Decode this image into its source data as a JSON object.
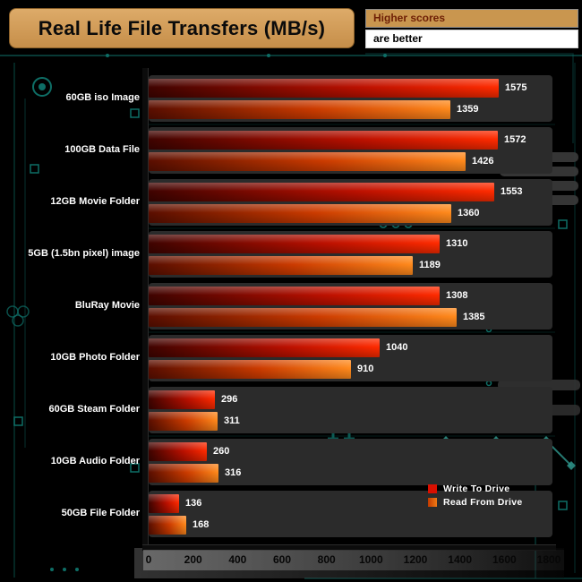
{
  "title": "Real Life File Transfers (MB/s)",
  "note": {
    "line1": "Higher scores",
    "line2": "are better"
  },
  "legend": {
    "write": "Write To  Drive",
    "read": "Read From  Drive",
    "write_color": "#d90f00",
    "read_color": "#ef7a14"
  },
  "colors": {
    "background": "#000000",
    "circuit_teal": "#0e6e66",
    "band_gray": "#2b2b2b",
    "title_box_tan": "#c9964f",
    "bar_write_bright": "#ff2b00",
    "bar_read_bright": "#ff8a1c",
    "label_white": "#ffffff"
  },
  "chart_data": {
    "type": "bar",
    "orientation": "horizontal",
    "title": "Real Life File Transfers (MB/s)",
    "categories": [
      "60GB iso Image",
      "100GB Data File",
      "12GB Movie Folder",
      "5GB (1.5bn pixel) image",
      "BluRay Movie",
      "10GB Photo Folder",
      "60GB Steam Folder",
      "10GB Audio Folder",
      "50GB File Folder"
    ],
    "series": [
      {
        "name": "Write To Drive",
        "values": [
          1575,
          1572,
          1553,
          1310,
          1308,
          1040,
          296,
          260,
          136
        ]
      },
      {
        "name": "Read From Drive",
        "values": [
          1359,
          1426,
          1360,
          1189,
          1385,
          910,
          311,
          316,
          168
        ]
      }
    ],
    "xlim": [
      0,
      1800
    ],
    "xticks": [
      0,
      200,
      400,
      600,
      800,
      1000,
      1200,
      1400,
      1600,
      1800
    ],
    "legend_position": "lower-right",
    "grid": false
  }
}
